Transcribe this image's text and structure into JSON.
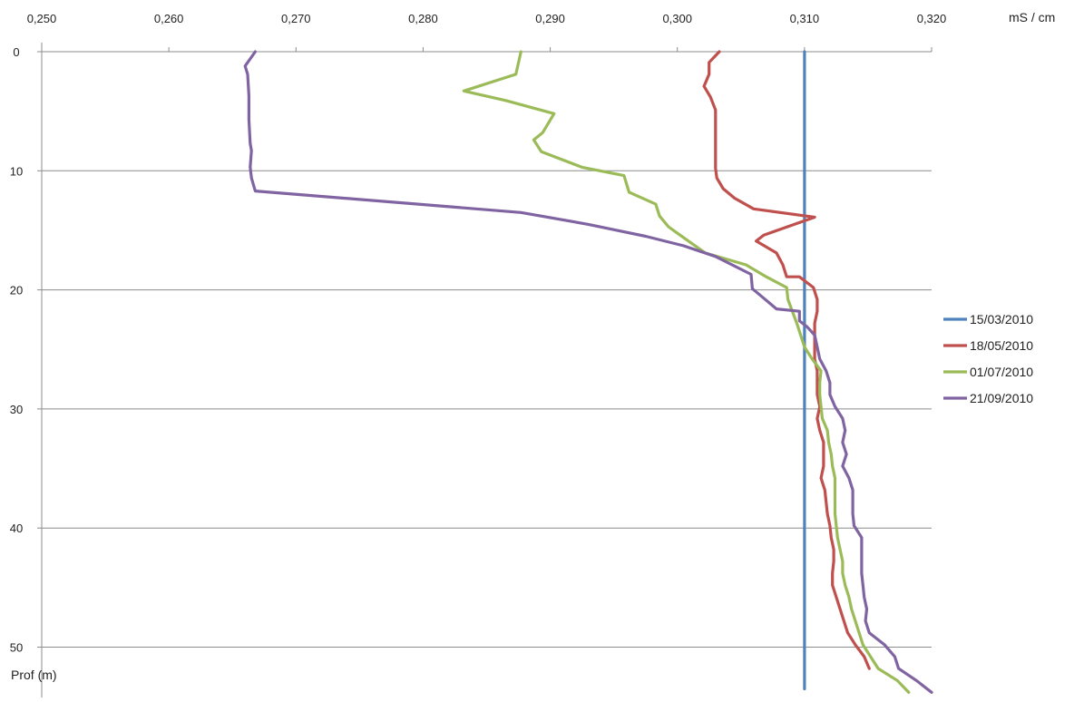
{
  "chart_data": {
    "type": "line",
    "x_axis": {
      "label": "mS / cm",
      "position": "top",
      "range": [
        0.25,
        0.32
      ],
      "ticks": [
        0.25,
        0.26,
        0.27,
        0.28,
        0.29,
        0.3,
        0.31,
        0.32
      ],
      "tick_labels": [
        "0,250",
        "0,260",
        "0,270",
        "0,280",
        "0,290",
        "0,300",
        "0,310",
        "0,320"
      ]
    },
    "y_axis": {
      "label": "Prof (m)",
      "reversed": true,
      "range": [
        0,
        52
      ],
      "ticks": [
        0,
        10,
        20,
        30,
        40,
        50
      ],
      "tick_labels": [
        "0",
        "10",
        "20",
        "30",
        "40",
        "50"
      ]
    },
    "grid": "horizontal",
    "legend": "right",
    "series": [
      {
        "name": "15/03/2010",
        "color": "#4F81BD",
        "points": [
          [
            0.31,
            0
          ],
          [
            0.31,
            53.5
          ]
        ]
      },
      {
        "name": "18/05/2010",
        "color": "#C0504D",
        "points": [
          [
            0.3033,
            0
          ],
          [
            0.3025,
            0.9
          ],
          [
            0.3025,
            1.9
          ],
          [
            0.3021,
            2.9
          ],
          [
            0.3026,
            3.8
          ],
          [
            0.303,
            4.9
          ],
          [
            0.303,
            5.8
          ],
          [
            0.303,
            6.8
          ],
          [
            0.303,
            7.7
          ],
          [
            0.303,
            8.8
          ],
          [
            0.303,
            9.8
          ],
          [
            0.3031,
            10.6
          ],
          [
            0.3036,
            11.5
          ],
          [
            0.3045,
            12.3
          ],
          [
            0.306,
            13.2
          ],
          [
            0.3108,
            13.9
          ],
          [
            0.3068,
            15.4
          ],
          [
            0.3062,
            15.9
          ],
          [
            0.3078,
            16.9
          ],
          [
            0.3083,
            17.9
          ],
          [
            0.3086,
            18.9
          ],
          [
            0.3096,
            18.9
          ],
          [
            0.3107,
            19.8
          ],
          [
            0.311,
            20.8
          ],
          [
            0.311,
            21.8
          ],
          [
            0.3108,
            22.8
          ],
          [
            0.3108,
            23.7
          ],
          [
            0.3108,
            24.8
          ],
          [
            0.3108,
            25.8
          ],
          [
            0.311,
            26.8
          ],
          [
            0.311,
            27.8
          ],
          [
            0.311,
            28.8
          ],
          [
            0.3112,
            29.8
          ],
          [
            0.311,
            30.8
          ],
          [
            0.3112,
            31.8
          ],
          [
            0.3115,
            32.8
          ],
          [
            0.3115,
            33.8
          ],
          [
            0.3115,
            34.8
          ],
          [
            0.3113,
            35.8
          ],
          [
            0.3116,
            36.8
          ],
          [
            0.3117,
            37.8
          ],
          [
            0.3118,
            38.8
          ],
          [
            0.312,
            39.8
          ],
          [
            0.3121,
            40.8
          ],
          [
            0.3123,
            41.8
          ],
          [
            0.3123,
            42.8
          ],
          [
            0.3122,
            43.8
          ],
          [
            0.3122,
            44.8
          ],
          [
            0.3125,
            45.8
          ],
          [
            0.3128,
            46.8
          ],
          [
            0.3131,
            47.8
          ],
          [
            0.3134,
            48.8
          ],
          [
            0.314,
            49.8
          ],
          [
            0.3147,
            50.8
          ],
          [
            0.3151,
            51.8
          ]
        ]
      },
      {
        "name": "01/07/2010",
        "color": "#9BBB59",
        "points": [
          [
            0.2877,
            0
          ],
          [
            0.2873,
            1.9
          ],
          [
            0.2832,
            3.3
          ],
          [
            0.2865,
            4.1
          ],
          [
            0.2903,
            5.2
          ],
          [
            0.2894,
            6.8
          ],
          [
            0.2887,
            7.4
          ],
          [
            0.2893,
            8.4
          ],
          [
            0.2925,
            9.7
          ],
          [
            0.2958,
            10.4
          ],
          [
            0.2962,
            11.8
          ],
          [
            0.2983,
            12.8
          ],
          [
            0.2986,
            13.8
          ],
          [
            0.2993,
            14.7
          ],
          [
            0.3006,
            15.7
          ],
          [
            0.3022,
            16.9
          ],
          [
            0.3054,
            17.9
          ],
          [
            0.307,
            18.9
          ],
          [
            0.3086,
            19.8
          ],
          [
            0.3087,
            20.8
          ],
          [
            0.3094,
            22.8
          ],
          [
            0.31,
            24.8
          ],
          [
            0.3106,
            25.8
          ],
          [
            0.3113,
            26.8
          ],
          [
            0.3112,
            27.8
          ],
          [
            0.3112,
            28.8
          ],
          [
            0.3113,
            29.8
          ],
          [
            0.3114,
            30.8
          ],
          [
            0.3118,
            31.8
          ],
          [
            0.3119,
            32.8
          ],
          [
            0.3121,
            33.8
          ],
          [
            0.3122,
            34.8
          ],
          [
            0.3124,
            35.8
          ],
          [
            0.3124,
            36.8
          ],
          [
            0.3124,
            37.8
          ],
          [
            0.3124,
            38.8
          ],
          [
            0.3125,
            39.8
          ],
          [
            0.3126,
            40.8
          ],
          [
            0.3128,
            41.8
          ],
          [
            0.313,
            42.8
          ],
          [
            0.313,
            43.8
          ],
          [
            0.3132,
            44.8
          ],
          [
            0.3135,
            45.8
          ],
          [
            0.3137,
            46.8
          ],
          [
            0.314,
            47.8
          ],
          [
            0.3143,
            48.8
          ],
          [
            0.3146,
            49.8
          ],
          [
            0.3152,
            50.8
          ],
          [
            0.3158,
            51.8
          ],
          [
            0.3173,
            52.8
          ],
          [
            0.3182,
            53.8
          ]
        ]
      },
      {
        "name": "21/09/2010",
        "color": "#8064A2",
        "points": [
          [
            0.2668,
            0
          ],
          [
            0.266,
            1.2
          ],
          [
            0.2662,
            1.9
          ],
          [
            0.2663,
            3.7
          ],
          [
            0.2663,
            5.7
          ],
          [
            0.2664,
            7.7
          ],
          [
            0.2665,
            8.3
          ],
          [
            0.2664,
            9.7
          ],
          [
            0.2665,
            10.6
          ],
          [
            0.2668,
            11.7
          ],
          [
            0.2877,
            13.5
          ],
          [
            0.293,
            14.5
          ],
          [
            0.2975,
            15.5
          ],
          [
            0.3005,
            16.3
          ],
          [
            0.303,
            17.2
          ],
          [
            0.3058,
            18.7
          ],
          [
            0.3059,
            19.9
          ],
          [
            0.3068,
            20.7
          ],
          [
            0.3078,
            21.6
          ],
          [
            0.3096,
            21.8
          ],
          [
            0.3096,
            22.6
          ],
          [
            0.3102,
            23.1
          ],
          [
            0.3108,
            23.8
          ],
          [
            0.311,
            24.8
          ],
          [
            0.3112,
            25.8
          ],
          [
            0.3117,
            26.8
          ],
          [
            0.312,
            27.8
          ],
          [
            0.312,
            28.8
          ],
          [
            0.3124,
            29.8
          ],
          [
            0.313,
            30.8
          ],
          [
            0.3132,
            31.8
          ],
          [
            0.313,
            32.8
          ],
          [
            0.3133,
            33.8
          ],
          [
            0.313,
            34.8
          ],
          [
            0.3135,
            35.8
          ],
          [
            0.3138,
            36.8
          ],
          [
            0.3138,
            37.8
          ],
          [
            0.3138,
            38.8
          ],
          [
            0.3139,
            39.8
          ],
          [
            0.3145,
            40.8
          ],
          [
            0.3145,
            41.8
          ],
          [
            0.3145,
            42.8
          ],
          [
            0.3145,
            43.8
          ],
          [
            0.3146,
            44.8
          ],
          [
            0.3147,
            45.8
          ],
          [
            0.3149,
            46.8
          ],
          [
            0.3148,
            47.8
          ],
          [
            0.3151,
            48.8
          ],
          [
            0.3163,
            49.8
          ],
          [
            0.3171,
            50.8
          ],
          [
            0.3174,
            51.8
          ],
          [
            0.3188,
            52.8
          ],
          [
            0.32,
            53.8
          ]
        ]
      }
    ]
  }
}
